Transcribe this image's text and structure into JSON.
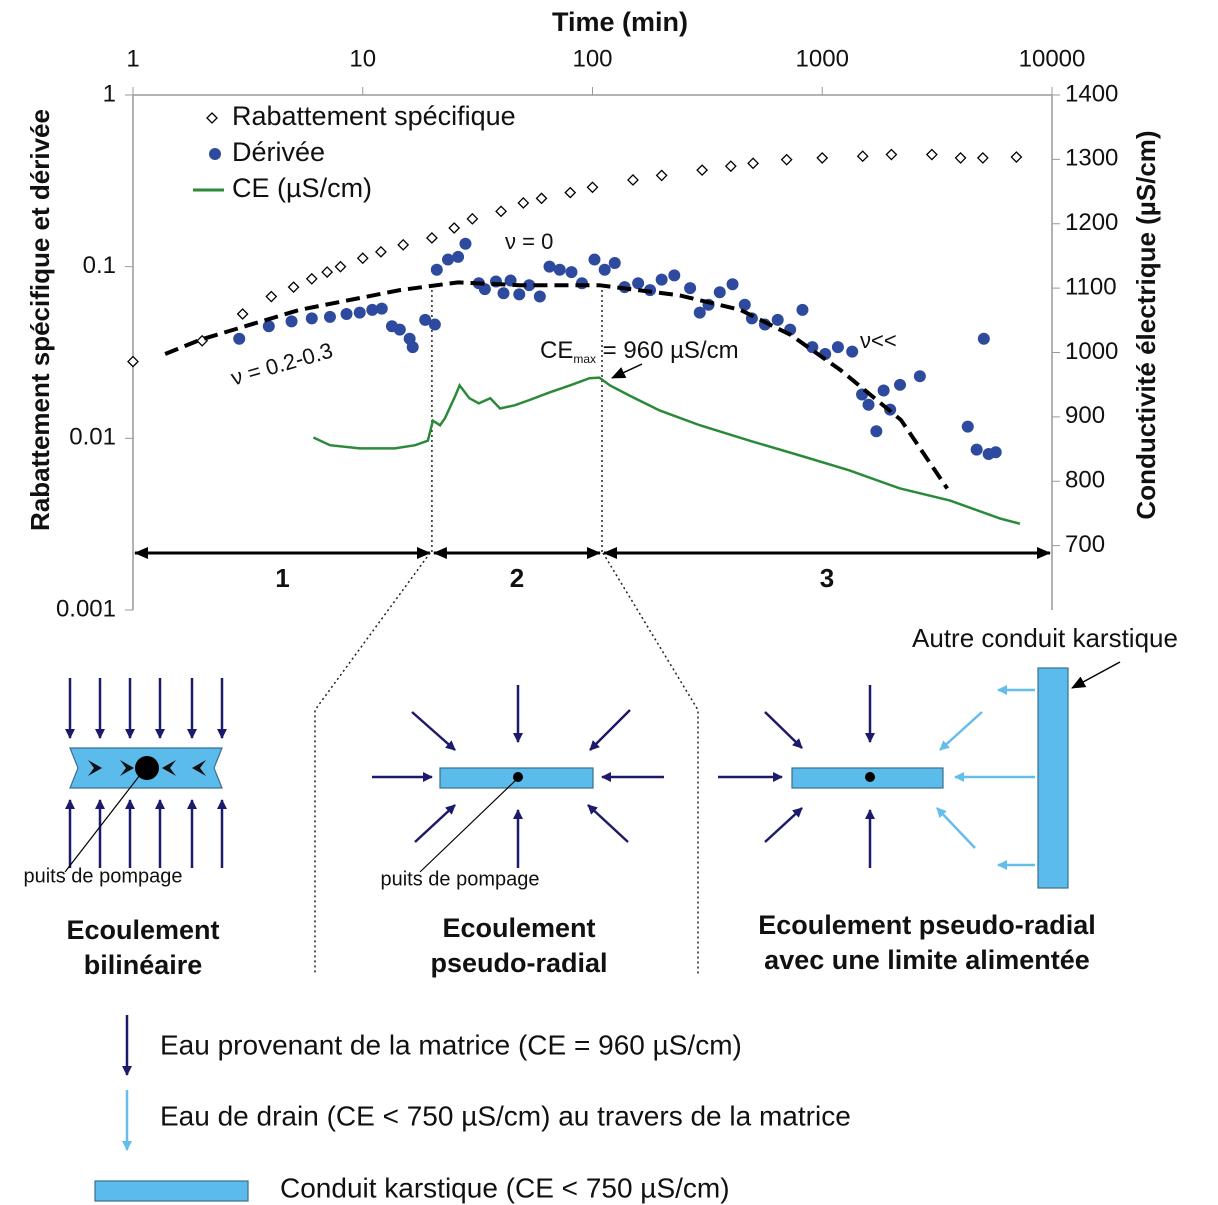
{
  "chart_data": {
    "type": "scatter",
    "title": "Time (min)",
    "y_label": "Rabattement spécifique et dérivée",
    "y2_label": "Conductivité électrique (µS/cm)",
    "x_scale": "log",
    "y_scale": "log",
    "xlim": [
      1,
      10000
    ],
    "xticks": [
      1,
      10,
      100,
      1000,
      10000
    ],
    "ylim": [
      0.001,
      1
    ],
    "yticks": [
      1,
      0.1,
      0.01,
      0.001
    ],
    "y2lim": [
      600,
      1400
    ],
    "y2ticks": [
      1400,
      1300,
      1200,
      1100,
      1000,
      900,
      800,
      700
    ],
    "series": [
      {
        "name": "Rabattement spécifique",
        "marker": "diamond",
        "color": "#000000",
        "x": [
          1,
          2,
          3,
          4,
          5,
          6,
          7,
          8,
          10,
          12,
          15,
          20,
          25,
          30,
          40,
          50,
          60,
          80,
          100,
          150,
          200,
          300,
          400,
          500,
          700,
          1000,
          1500,
          2000,
          3000,
          4000,
          5000,
          7000
        ],
        "values": [
          0.028,
          0.037,
          0.053,
          0.067,
          0.076,
          0.085,
          0.093,
          0.1,
          0.112,
          0.122,
          0.134,
          0.147,
          0.168,
          0.19,
          0.21,
          0.235,
          0.25,
          0.27,
          0.29,
          0.32,
          0.34,
          0.365,
          0.385,
          0.4,
          0.42,
          0.43,
          0.44,
          0.45,
          0.45,
          0.43,
          0.43,
          0.435
        ]
      },
      {
        "name": "Dérivée",
        "marker": "circle",
        "color": "#2e4a9e",
        "x": [
          2.9,
          3.9,
          4.9,
          6,
          7.2,
          8.5,
          9.7,
          11,
          12.1,
          13.4,
          14.5,
          16,
          16.5,
          18.7,
          20.6,
          21,
          23.5,
          26,
          28,
          32,
          34,
          38,
          41,
          44,
          48,
          53,
          59,
          65,
          72,
          81,
          90,
          102,
          113,
          125,
          138,
          158,
          178,
          200,
          227,
          266,
          293,
          320,
          358,
          407,
          460,
          494,
          563,
          640,
          725,
          820,
          905,
          1030,
          1170,
          1350,
          1490,
          1590,
          1720,
          1850,
          1975,
          2180,
          2660,
          4300,
          4700,
          5050,
          5300,
          5690
        ],
        "values": [
          0.038,
          0.045,
          0.048,
          0.05,
          0.051,
          0.053,
          0.054,
          0.056,
          0.057,
          0.045,
          0.043,
          0.038,
          0.034,
          0.049,
          0.046,
          0.096,
          0.11,
          0.114,
          0.136,
          0.08,
          0.074,
          0.082,
          0.07,
          0.083,
          0.069,
          0.078,
          0.067,
          0.1,
          0.096,
          0.093,
          0.08,
          0.11,
          0.096,
          0.105,
          0.076,
          0.08,
          0.073,
          0.084,
          0.089,
          0.075,
          0.054,
          0.06,
          0.071,
          0.079,
          0.06,
          0.05,
          0.046,
          0.049,
          0.043,
          0.056,
          0.034,
          0.031,
          0.034,
          0.032,
          0.018,
          0.0157,
          0.011,
          0.019,
          0.0147,
          0.0205,
          0.023,
          0.0117,
          0.0086,
          0.038,
          0.0081,
          0.0083
        ]
      },
      {
        "name": "CE (µS/cm)",
        "marker": "line",
        "color": "#2a8a3a",
        "axis": "y2",
        "x": [
          6.1,
          7.2,
          9.7,
          13.8,
          16.9,
          19.2,
          20.2,
          21.7,
          22.8,
          25.3,
          26.4,
          29.1,
          32,
          35.9,
          39.6,
          45.8,
          53,
          65,
          80,
          97,
          107,
          119,
          145,
          196,
          293,
          483,
          800,
          1310,
          2170,
          3600,
          5950,
          7250
        ],
        "values": [
          868,
          856,
          851,
          851,
          856,
          863,
          894,
          887,
          898,
          933,
          949,
          929,
          921,
          929,
          913,
          918,
          926,
          938,
          949,
          960,
          961,
          949,
          933,
          910,
          887,
          863,
          840,
          817,
          789,
          770,
          742,
          734
        ]
      },
      {
        "marker": "dashed",
        "color": "#000000",
        "x": [
          1.38,
          1.96,
          5.3,
          14.5,
          26,
          48,
          107,
          240,
          440,
          730,
          1200,
          2200,
          3500
        ],
        "values": [
          0.031,
          0.0375,
          0.056,
          0.073,
          0.081,
          0.078,
          0.078,
          0.068,
          0.056,
          0.04,
          0.025,
          0.0128,
          0.0051
        ]
      }
    ],
    "phase_boundaries": [
      20,
      110
    ],
    "phases": [
      "1",
      "2",
      "3"
    ],
    "annotations": {
      "nu_zero": "ν = 0",
      "nu_bilinear": "ν = 0.2-0.3",
      "nu_small": "ν<<",
      "ce_max": {
        "main": "CE",
        "sub": "max",
        "rest": " = 960 µS/cm"
      }
    }
  },
  "diagrams": {
    "panels": [
      {
        "title": [
          "Ecoulement",
          "bilinéaire"
        ],
        "well": "puits de pompage"
      },
      {
        "title": [
          "Ecoulement",
          "pseudo-radial"
        ],
        "well": "puits de pompage"
      },
      {
        "title": [
          "Ecoulement pseudo-radial",
          "avec une limite alimentée"
        ],
        "conduit": "Autre conduit karstique"
      }
    ]
  },
  "legend": [
    "Eau provenant de la matrice (CE = 960 µS/cm)",
    "Eau de drain (CE < 750 µS/cm) au travers de la matrice",
    "Conduit karstique (CE < 750 µS/cm)"
  ]
}
